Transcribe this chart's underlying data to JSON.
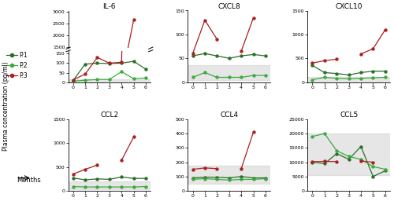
{
  "months": [
    0,
    1,
    2,
    3,
    4,
    5,
    6
  ],
  "titles": [
    "IL-6",
    "CXCL8",
    "CXCL10",
    "CCL2",
    "CCL4",
    "CCL5"
  ],
  "p1_color": "#2a6e2a",
  "p2_color": "#3daa3d",
  "p3_color": "#aa1f1f",
  "gray_fill": "#c8c8c8",
  "gray_alpha": 0.45,
  "IL6": {
    "p1": [
      8,
      95,
      100,
      98,
      100,
      110,
      68
    ],
    "p2": [
      5,
      10,
      14,
      14,
      55,
      18,
      22
    ],
    "p3": [
      12,
      42,
      130,
      100,
      105,
      2650,
      null
    ],
    "ylim_low": [
      0,
      160
    ],
    "ylim_high": [
      1450,
      3000
    ],
    "yticks_low": [
      0,
      50,
      100,
      150
    ],
    "yticks_high": [
      1500,
      2000,
      2500,
      3000
    ],
    "gray_low": 0,
    "gray_high": 15
  },
  "CXCL8": {
    "p1": [
      55,
      60,
      55,
      50,
      55,
      58,
      55
    ],
    "p2": [
      10,
      20,
      10,
      10,
      10,
      14,
      14
    ],
    "p3": [
      60,
      130,
      90,
      null,
      65,
      135,
      null
    ],
    "ylim": [
      0,
      150
    ],
    "yticks": [
      0,
      50,
      100,
      150
    ],
    "gray_low": 5,
    "gray_high": 35
  },
  "CXCL10": {
    "p1": [
      350,
      200,
      180,
      150,
      200,
      230,
      230
    ],
    "p2": [
      50,
      100,
      80,
      70,
      80,
      90,
      100
    ],
    "p3": [
      400,
      450,
      480,
      null,
      590,
      700,
      1100
    ],
    "ylim": [
      0,
      1500
    ],
    "yticks": [
      0,
      500,
      1000,
      1500
    ],
    "gray_low": 0,
    "gray_high": 100
  },
  "CCL2": {
    "p1": [
      270,
      230,
      250,
      240,
      290,
      260,
      260
    ],
    "p2": [
      90,
      80,
      80,
      80,
      80,
      80,
      90
    ],
    "p3": [
      350,
      450,
      540,
      null,
      640,
      1130,
      null
    ],
    "ylim": [
      0,
      1500
    ],
    "yticks": [
      0,
      500,
      1000,
      1500
    ],
    "gray_low": 30,
    "gray_high": 200
  },
  "CCL4": {
    "p1": [
      90,
      95,
      95,
      90,
      100,
      90,
      90
    ],
    "p2": [
      80,
      85,
      80,
      75,
      80,
      80,
      85
    ],
    "p3": [
      150,
      160,
      155,
      null,
      155,
      410,
      null
    ],
    "ylim": [
      0,
      500
    ],
    "yticks": [
      0,
      100,
      200,
      300,
      400,
      500
    ],
    "gray_low": 50,
    "gray_high": 175
  },
  "CCL5": {
    "p1": [
      10000,
      9500,
      13000,
      11000,
      15500,
      5000,
      7000
    ],
    "p2": [
      19000,
      20000,
      14000,
      12000,
      11000,
      8500,
      7500
    ],
    "p3": [
      10200,
      10300,
      10200,
      null,
      10400,
      10000,
      null
    ],
    "ylim": [
      0,
      25000
    ],
    "yticks": [
      0,
      5000,
      10000,
      15000,
      20000,
      25000
    ],
    "gray_low": 5500,
    "gray_high": 20000
  },
  "ylabel": "Plasma concentration (pg/ml)",
  "xlabel": "Months",
  "fig_bg": "#ffffff"
}
